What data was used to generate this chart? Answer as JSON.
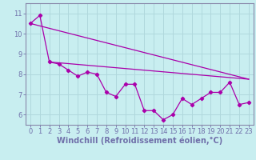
{
  "title": "",
  "xlabel": "Windchill (Refroidissement éolien,°C)",
  "ylabel": "",
  "background_color": "#c8eef0",
  "grid_color": "#b0d8dc",
  "line_color": "#aa00aa",
  "spine_color": "#8888aa",
  "xlim": [
    -0.5,
    23.5
  ],
  "ylim": [
    5.5,
    11.5
  ],
  "yticks": [
    6,
    7,
    8,
    9,
    10,
    11
  ],
  "xticks": [
    0,
    1,
    2,
    3,
    4,
    5,
    6,
    7,
    8,
    9,
    10,
    11,
    12,
    13,
    14,
    15,
    16,
    17,
    18,
    19,
    20,
    21,
    22,
    23
  ],
  "series1": [
    10.5,
    10.9,
    8.6,
    8.5,
    8.2,
    7.9,
    8.1,
    8.0,
    7.1,
    6.9,
    7.5,
    7.5,
    6.2,
    6.2,
    5.75,
    6.0,
    6.8,
    6.5,
    6.8,
    7.1,
    7.1,
    7.6,
    6.5,
    6.6
  ],
  "trend1_x": [
    0,
    23
  ],
  "trend1_y": [
    10.5,
    7.75
  ],
  "trend2_x": [
    2,
    23
  ],
  "trend2_y": [
    8.6,
    7.75
  ],
  "figsize": [
    3.2,
    2.0
  ],
  "dpi": 100,
  "xlabel_fontsize": 7,
  "tick_fontsize": 6,
  "tick_color": "#7070aa"
}
